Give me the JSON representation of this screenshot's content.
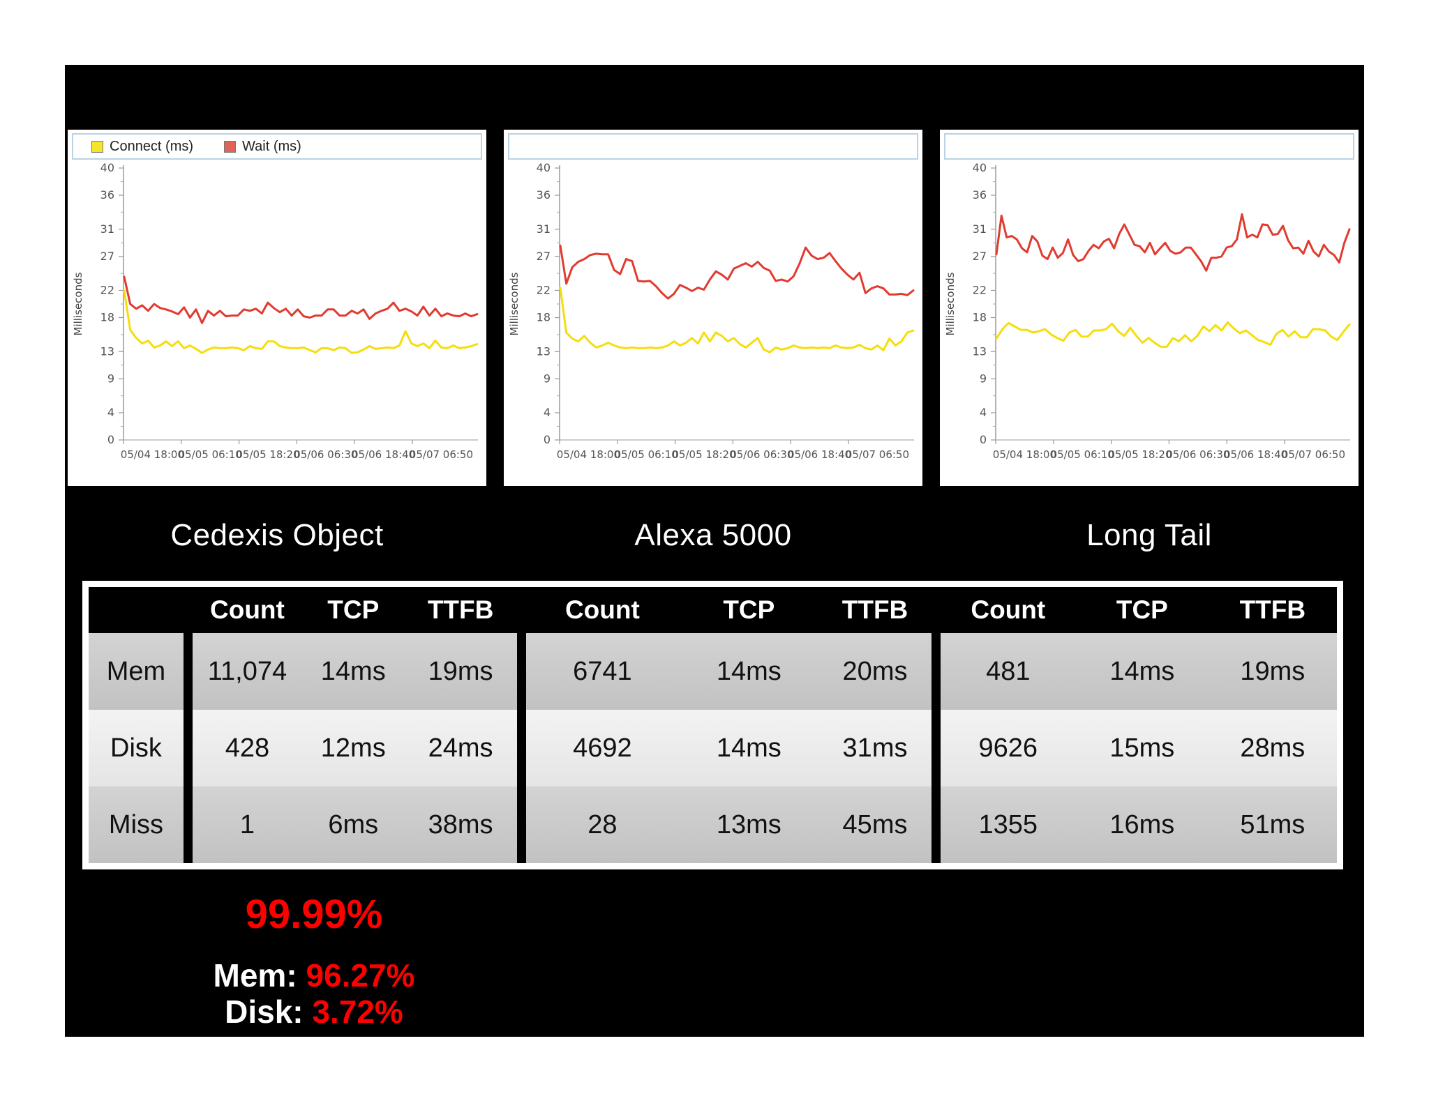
{
  "legend": {
    "items": [
      {
        "label": "Connect (ms)",
        "color": "#f4e42a",
        "line_color": "#f5de0b"
      },
      {
        "label": "Wait (ms)",
        "color": "#e0635a",
        "line_color": "#e13b30"
      }
    ]
  },
  "chart_data": [
    {
      "type": "line",
      "title": "Cedexis Object",
      "ylabel": "Milliseconds",
      "ylim": [
        0,
        40
      ],
      "yticks": [
        40,
        36,
        31,
        27,
        22,
        18,
        13,
        9,
        4,
        0
      ],
      "xticklabels": [
        "05/04 18:00",
        "05/05 06:10",
        "05/05 18:20",
        "05/06 06:30",
        "05/06 18:40",
        "05/07 06:50"
      ],
      "grid": false,
      "legend_position": "top",
      "series": [
        {
          "name": "Wait (ms)",
          "color": "#e13b30",
          "values": [
            24.0,
            20.0,
            19.3,
            19.8,
            19.0,
            20.0,
            19.4,
            19.2,
            18.9,
            18.5,
            19.5,
            18.0,
            19.2,
            17.2,
            19.0,
            18.3,
            19.0,
            18.2,
            18.3,
            18.3,
            19.2,
            19.0,
            19.3,
            18.6,
            20.2,
            19.4,
            18.8,
            19.3,
            18.3,
            19.2,
            18.2,
            18.0,
            18.3,
            18.3,
            19.2,
            19.2,
            18.3,
            18.3,
            19.0,
            18.6,
            19.2,
            17.8,
            18.6,
            19.0,
            19.3,
            20.2,
            19.0,
            19.3,
            18.9,
            18.3,
            19.6,
            18.3,
            19.3,
            18.2,
            18.6,
            18.3,
            18.2,
            18.6,
            18.2,
            18.5
          ]
        },
        {
          "name": "Connect (ms)",
          "color": "#f5de0b",
          "values": [
            22.0,
            16.2,
            15.0,
            14.2,
            14.6,
            13.6,
            13.9,
            14.5,
            13.8,
            14.5,
            13.5,
            13.9,
            13.4,
            12.8,
            13.3,
            13.6,
            13.5,
            13.5,
            13.6,
            13.5,
            13.2,
            13.8,
            13.5,
            13.4,
            14.5,
            14.5,
            13.8,
            13.6,
            13.5,
            13.5,
            13.6,
            13.2,
            12.9,
            13.5,
            13.5,
            13.2,
            13.6,
            13.5,
            12.8,
            12.9,
            13.3,
            13.8,
            13.4,
            13.5,
            13.6,
            13.5,
            13.9,
            16.0,
            14.2,
            13.8,
            14.2,
            13.5,
            14.6,
            13.6,
            13.5,
            13.9,
            13.5,
            13.6,
            13.8,
            14.1
          ]
        }
      ]
    },
    {
      "type": "line",
      "title": "Alexa 5000",
      "ylabel": "Milliseconds",
      "ylim": [
        0,
        40
      ],
      "yticks": [
        40,
        36,
        31,
        27,
        22,
        18,
        13,
        9,
        4,
        0
      ],
      "xticklabels": [
        "05/04 18:00",
        "05/05 06:10",
        "05/05 18:20",
        "05/06 06:30",
        "05/06 18:40",
        "05/07 06:50"
      ],
      "grid": false,
      "legend_position": "none",
      "series": [
        {
          "name": "Wait (ms)",
          "color": "#e13b30",
          "values": [
            28.6,
            23.0,
            25.4,
            26.2,
            26.6,
            27.2,
            27.4,
            27.3,
            27.3,
            25.0,
            24.4,
            26.6,
            26.3,
            23.4,
            23.3,
            23.4,
            22.6,
            21.6,
            20.8,
            21.5,
            22.8,
            22.4,
            21.9,
            22.4,
            22.1,
            23.6,
            24.8,
            24.3,
            23.6,
            25.2,
            25.6,
            26.0,
            25.5,
            26.2,
            25.3,
            24.9,
            23.4,
            23.6,
            23.3,
            24.1,
            26.0,
            28.3,
            27.1,
            26.6,
            26.8,
            27.5,
            26.3,
            25.2,
            24.3,
            23.6,
            24.6,
            21.6,
            22.3,
            22.6,
            22.3,
            21.4,
            21.4,
            21.5,
            21.3,
            22.0
          ]
        },
        {
          "name": "Connect (ms)",
          "color": "#f5de0b",
          "values": [
            22.4,
            15.8,
            14.9,
            14.5,
            15.3,
            14.3,
            13.6,
            13.9,
            14.3,
            13.9,
            13.6,
            13.5,
            13.6,
            13.5,
            13.5,
            13.6,
            13.5,
            13.6,
            13.9,
            14.5,
            13.9,
            14.3,
            15.0,
            14.2,
            15.8,
            14.5,
            15.8,
            15.3,
            14.5,
            15.0,
            14.1,
            13.6,
            14.3,
            15.0,
            13.3,
            12.9,
            13.6,
            13.3,
            13.5,
            13.9,
            13.6,
            13.5,
            13.6,
            13.5,
            13.6,
            13.5,
            13.9,
            13.6,
            13.5,
            13.6,
            14.0,
            13.5,
            13.3,
            13.9,
            13.2,
            14.9,
            13.9,
            14.5,
            15.8,
            16.1
          ]
        }
      ]
    },
    {
      "type": "line",
      "title": "Long Tail",
      "ylabel": "Milliseconds",
      "ylim": [
        0,
        40
      ],
      "yticks": [
        40,
        36,
        31,
        27,
        22,
        18,
        13,
        9,
        4,
        0
      ],
      "xticklabels": [
        "05/04 18:00",
        "05/05 06:10",
        "05/05 18:20",
        "05/06 06:30",
        "05/06 18:40",
        "05/07 06:50"
      ],
      "grid": false,
      "legend_position": "none",
      "series": [
        {
          "name": "Wait (ms)",
          "color": "#e13b30",
          "values": [
            27.3,
            33.0,
            29.8,
            30.0,
            29.5,
            28.2,
            27.6,
            30.0,
            29.2,
            27.1,
            26.6,
            28.3,
            26.8,
            27.5,
            29.5,
            27.2,
            26.3,
            26.6,
            27.8,
            28.7,
            28.2,
            29.2,
            29.6,
            28.2,
            30.3,
            31.7,
            30.2,
            28.7,
            28.5,
            27.6,
            29.0,
            27.3,
            28.2,
            29.0,
            27.8,
            27.4,
            27.6,
            28.3,
            28.3,
            27.3,
            26.3,
            24.9,
            26.8,
            26.8,
            27.0,
            28.3,
            28.5,
            29.5,
            33.2,
            29.8,
            30.2,
            29.8,
            31.7,
            31.6,
            30.2,
            30.3,
            31.5,
            29.4,
            28.2,
            28.3,
            27.4,
            29.3,
            27.7,
            27.0,
            28.7,
            27.7,
            27.2,
            26.1,
            29.0,
            31.0
          ]
        },
        {
          "name": "Connect (ms)",
          "color": "#f5de0b",
          "values": [
            14.9,
            16.3,
            17.2,
            16.7,
            16.2,
            16.2,
            15.8,
            16.0,
            16.3,
            15.5,
            15.0,
            14.6,
            15.8,
            16.2,
            15.2,
            15.2,
            16.1,
            16.1,
            16.3,
            17.1,
            16.0,
            15.3,
            16.5,
            15.3,
            14.3,
            15.0,
            14.3,
            13.7,
            13.7,
            15.0,
            14.5,
            15.4,
            14.5,
            15.3,
            16.7,
            16.0,
            16.9,
            16.1,
            17.3,
            16.4,
            15.7,
            16.1,
            15.4,
            14.7,
            14.4,
            14.0,
            15.6,
            16.2,
            15.2,
            16.0,
            15.1,
            15.1,
            16.3,
            16.3,
            16.1,
            15.2,
            14.7,
            15.9,
            17.0
          ]
        }
      ]
    }
  ],
  "table": {
    "columns": [
      "Count",
      "TCP",
      "TTFB"
    ],
    "row_labels": [
      "Mem",
      "Disk",
      "Miss"
    ],
    "groups": [
      {
        "chart": "Cedexis Object",
        "rows": [
          [
            "11,074",
            "14ms",
            "19ms"
          ],
          [
            "428",
            "12ms",
            "24ms"
          ],
          [
            "1",
            "6ms",
            "38ms"
          ]
        ]
      },
      {
        "chart": "Alexa 5000",
        "rows": [
          [
            "6741",
            "14ms",
            "20ms"
          ],
          [
            "4692",
            "14ms",
            "31ms"
          ],
          [
            "28",
            "13ms",
            "45ms"
          ]
        ]
      },
      {
        "chart": "Long Tail",
        "rows": [
          [
            "481",
            "14ms",
            "19ms"
          ],
          [
            "9626",
            "15ms",
            "28ms"
          ],
          [
            "1355",
            "16ms",
            "51ms"
          ]
        ]
      }
    ]
  },
  "stats": {
    "headline": "99.99%",
    "accent_color": "#ff0000",
    "lines": [
      {
        "label": "Mem:",
        "value": "96.27%"
      },
      {
        "label": "Disk:",
        "value": "3.72%"
      }
    ]
  }
}
